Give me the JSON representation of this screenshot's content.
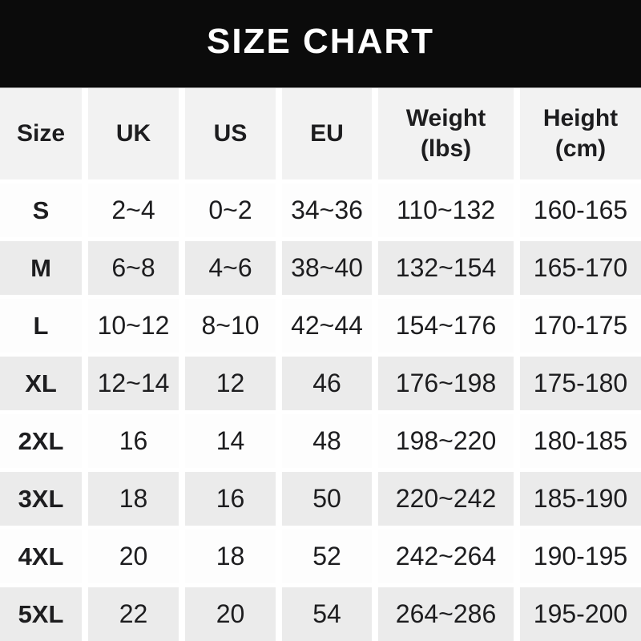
{
  "title": "SIZE CHART",
  "colors": {
    "banner_bg": "#0b0b0b",
    "banner_text": "#ffffff",
    "header_cell_bg": "#f2f2f2",
    "row_bg": "#fdfdfd",
    "row_alt_bg": "#ebebeb",
    "text": "#1d1d1f",
    "gutter": "#ffffff"
  },
  "header_display": [
    {
      "label": "Size"
    },
    {
      "label": "UK"
    },
    {
      "label": "US"
    },
    {
      "label": "EU"
    },
    {
      "label": "Weight",
      "sublabel": "(lbs)"
    },
    {
      "label": "Height",
      "sublabel": "(cm)"
    }
  ],
  "chart_data": {
    "type": "table",
    "title": "SIZE CHART",
    "columns": [
      "Size",
      "UK",
      "US",
      "EU",
      "Weight (lbs)",
      "Height (cm)"
    ],
    "rows": [
      [
        "S",
        "2~4",
        "0~2",
        "34~36",
        "110~132",
        "160-165"
      ],
      [
        "M",
        "6~8",
        "4~6",
        "38~40",
        "132~154",
        "165-170"
      ],
      [
        "L",
        "10~12",
        "8~10",
        "42~44",
        "154~176",
        "170-175"
      ],
      [
        "XL",
        "12~14",
        "12",
        "46",
        "176~198",
        "175-180"
      ],
      [
        "2XL",
        "16",
        "14",
        "48",
        "198~220",
        "180-185"
      ],
      [
        "3XL",
        "18",
        "16",
        "50",
        "220~242",
        "185-190"
      ],
      [
        "4XL",
        "20",
        "18",
        "52",
        "242~264",
        "190-195"
      ],
      [
        "5XL",
        "22",
        "20",
        "54",
        "264~286",
        "195-200"
      ]
    ]
  }
}
